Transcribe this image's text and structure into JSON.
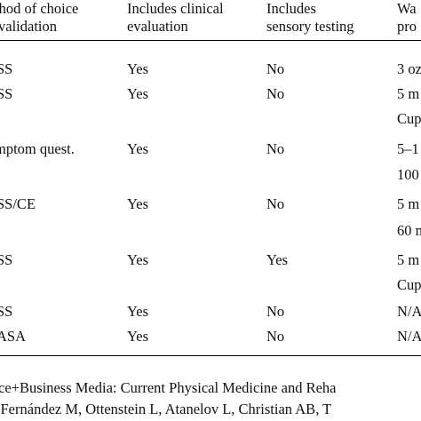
{
  "headers": [
    {
      "line1": "thod of choice",
      "line2": "validation"
    },
    {
      "line1": "Includes clinical",
      "line2": "evaluation"
    },
    {
      "line1": "Includes",
      "line2": "sensory testing"
    },
    {
      "line1": "Wa",
      "line2": "pro"
    }
  ],
  "rows": [
    {
      "method": "SS",
      "clinical": "Yes",
      "sensory": "No",
      "water": "3 oz",
      "water_cont": ""
    },
    {
      "method": "SS",
      "clinical": "Yes",
      "sensory": "No",
      "water": "5 m",
      "water_cont": "Cup"
    },
    {
      "method": "mptom quest.",
      "clinical": "Yes",
      "sensory": "No",
      "water": "5–1",
      "water_cont": "100"
    },
    {
      "method": "SS/CE",
      "clinical": "Yes",
      "sensory": "No",
      "water": "5 m",
      "water_cont": "60 m"
    },
    {
      "method": "SS",
      "clinical": "Yes",
      "sensory": "Yes",
      "water": "5 m",
      "water_cont": "Cup"
    },
    {
      "method": "SS",
      "clinical": "Yes",
      "sensory": "No",
      "water": "N/A",
      "water_cont": ""
    },
    {
      "method": "ASA",
      "clinical": "Yes",
      "sensory": "No",
      "water": "N/A",
      "water_cont": ""
    }
  ],
  "footer": {
    "line1": "ce+Business Media: Current Physical Medicine and Reha",
    "line2": "-Fernández M, Ottenstein L, Atanelov L, Christian AB, T"
  }
}
